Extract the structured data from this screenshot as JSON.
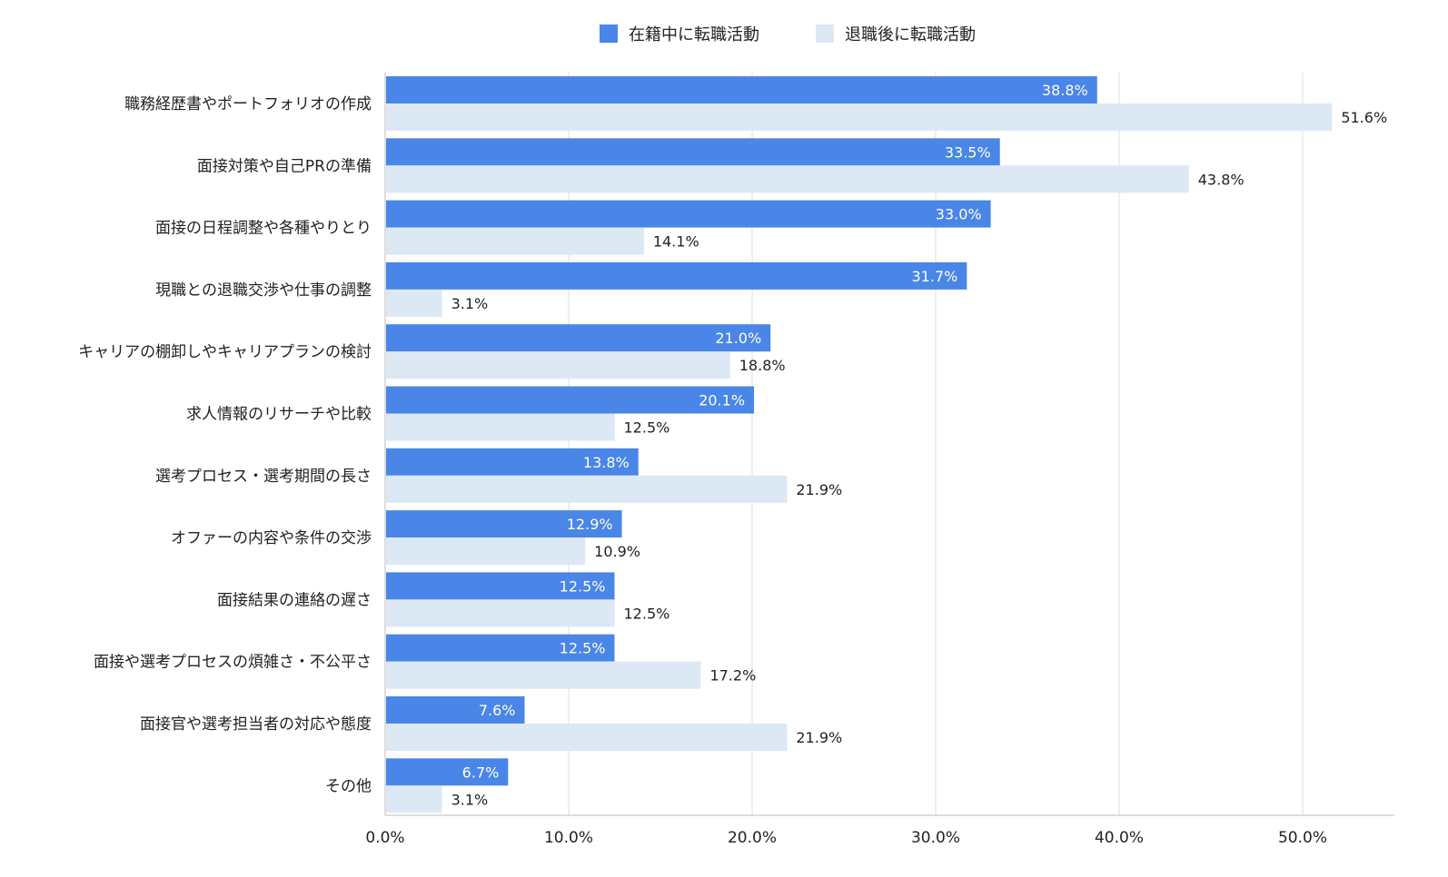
{
  "chart_data": {
    "type": "bar",
    "orientation": "horizontal",
    "categories": [
      "職務経歴書やポートフォリオの作成",
      "面接対策や自己PRの準備",
      "面接の日程調整や各種やりとり",
      "現職との退職交渉や仕事の調整",
      "キャリアの棚卸しやキャリアプランの検討",
      "求人情報のリサーチや比較",
      "選考プロセス・選考期間の長さ",
      "オファーの内容や条件の交渉",
      "面接結果の連絡の遅さ",
      "面接や選考プロセスの煩雑さ・不公平さ",
      "面接官や選考担当者の対応や態度",
      "その他"
    ],
    "series": [
      {
        "name": "在籍中に転職活動",
        "color": "#4a86e8",
        "values": [
          38.8,
          33.5,
          33.0,
          31.7,
          21.0,
          20.1,
          13.8,
          12.9,
          12.5,
          12.5,
          7.6,
          6.7
        ],
        "labels": [
          "38.8%",
          "33.5%",
          "33.0%",
          "31.7%",
          "21.0%",
          "20.1%",
          "13.8%",
          "12.9%",
          "12.5%",
          "12.5%",
          "7.6%",
          "6.7%"
        ]
      },
      {
        "name": "退職後に転職活動",
        "color": "#dde8f5",
        "values": [
          51.6,
          43.8,
          14.1,
          3.1,
          18.8,
          12.5,
          21.9,
          10.9,
          12.5,
          17.2,
          21.9,
          3.1
        ],
        "labels": [
          "51.6%",
          "43.8%",
          "14.1%",
          "3.1%",
          "18.8%",
          "12.5%",
          "21.9%",
          "10.9%",
          "12.5%",
          "17.2%",
          "21.9%",
          "3.1%"
        ]
      }
    ],
    "xlim": [
      0,
      55
    ],
    "xticks": [
      0,
      10,
      20,
      30,
      40,
      50
    ],
    "xtick_labels": [
      "0.0%",
      "10.0%",
      "20.0%",
      "30.0%",
      "40.0%",
      "50.0%"
    ],
    "grid": true,
    "legend": "top-center",
    "title": "",
    "xlabel": "",
    "ylabel": ""
  }
}
